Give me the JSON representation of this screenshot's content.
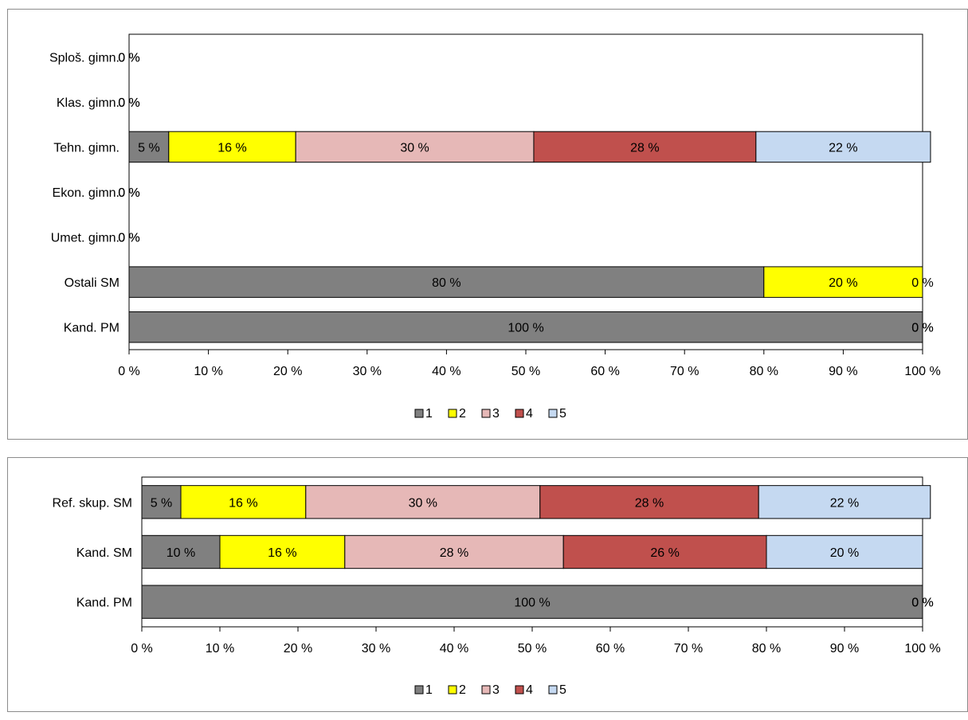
{
  "chart_data": [
    {
      "type": "bar",
      "orientation": "horizontal",
      "stacked": "percent",
      "title": "",
      "xlabel": "",
      "ylabel": "",
      "xlim": [
        0,
        100
      ],
      "x_ticks": [
        "0 %",
        "10 %",
        "20 %",
        "30 %",
        "40 %",
        "50 %",
        "60 %",
        "70 %",
        "80 %",
        "90 %",
        "100 %"
      ],
      "categories": [
        "Sploš. gimn.",
        "Klas. gimn.",
        "Tehn. gimn.",
        "Ekon. gimn.",
        "Umet. gimn.",
        "Ostali SM",
        "Kand. PM"
      ],
      "series": [
        {
          "name": "1",
          "color": "#808080",
          "values": [
            0,
            0,
            5,
            0,
            0,
            80,
            100
          ]
        },
        {
          "name": "2",
          "color": "#ffff00",
          "values": [
            0,
            0,
            16,
            0,
            0,
            20,
            0
          ]
        },
        {
          "name": "3",
          "color": "#e6b8b7",
          "values": [
            0,
            0,
            30,
            0,
            0,
            0,
            0
          ]
        },
        {
          "name": "4",
          "color": "#c0504d",
          "values": [
            0,
            0,
            28,
            0,
            0,
            0,
            0
          ]
        },
        {
          "name": "5",
          "color": "#c5d9f1",
          "values": [
            0,
            0,
            22,
            0,
            0,
            0,
            0
          ]
        }
      ],
      "legend": "bottom",
      "grid": false
    },
    {
      "type": "bar",
      "orientation": "horizontal",
      "stacked": "percent",
      "title": "",
      "xlabel": "",
      "ylabel": "",
      "xlim": [
        0,
        100
      ],
      "x_ticks": [
        "0 %",
        "10 %",
        "20 %",
        "30 %",
        "40 %",
        "50 %",
        "60 %",
        "70 %",
        "80 %",
        "90 %",
        "100 %"
      ],
      "categories": [
        "Ref. skup. SM",
        "Kand. SM",
        "Kand. PM"
      ],
      "series": [
        {
          "name": "1",
          "color": "#808080",
          "values": [
            5,
            10,
            100
          ]
        },
        {
          "name": "2",
          "color": "#ffff00",
          "values": [
            16,
            16,
            0
          ]
        },
        {
          "name": "3",
          "color": "#e6b8b7",
          "values": [
            30,
            28,
            0
          ]
        },
        {
          "name": "4",
          "color": "#c0504d",
          "values": [
            28,
            26,
            0
          ]
        },
        {
          "name": "5",
          "color": "#c5d9f1",
          "values": [
            22,
            20,
            0
          ]
        }
      ],
      "legend": "bottom",
      "grid": false
    }
  ]
}
